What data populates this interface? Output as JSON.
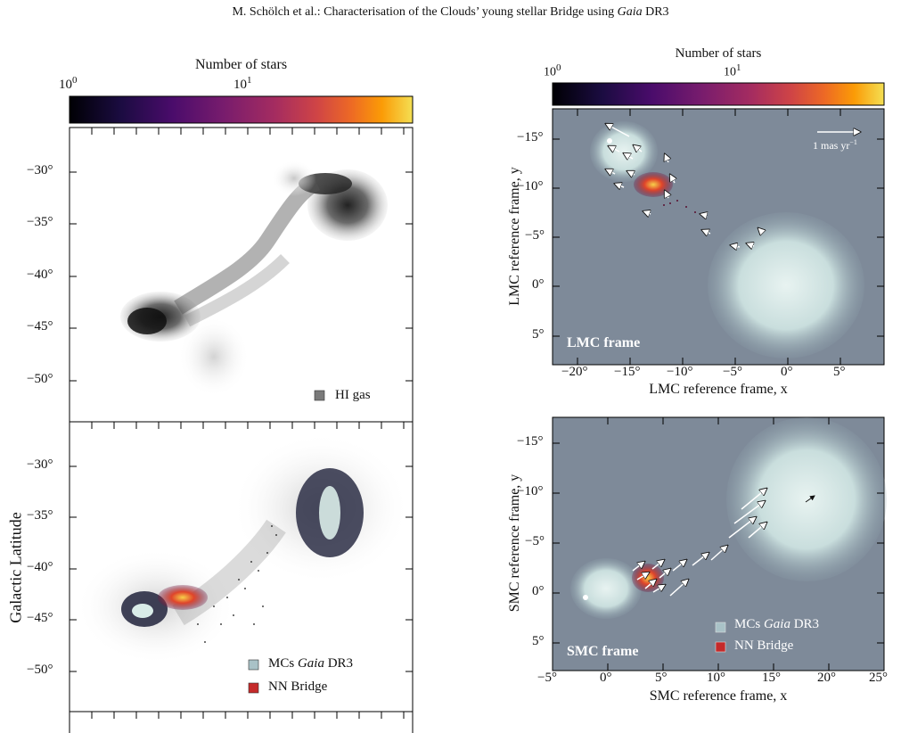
{
  "header": {
    "text": "M. Schölch et al.: Characterisation of the Clouds’ young stellar Bridge  using ",
    "italic": "Gaia",
    "tail": " DR3"
  },
  "left_colorbar": {
    "label": "Number of stars",
    "tick_min": "10",
    "tick_min_exp": "0",
    "tick_mid": "10",
    "tick_mid_exp": "1"
  },
  "right_colorbar": {
    "label": "Number of stars",
    "tick_min": "10",
    "tick_min_exp": "0",
    "tick_mid": "10",
    "tick_mid_exp": "1"
  },
  "left_top": {
    "yticks": [
      "−30°",
      "−35°",
      "−40°",
      "−45°",
      "−50°"
    ],
    "legend": "HI gas",
    "legend_color": "#7a7a7a"
  },
  "left_bottom": {
    "yticks": [
      "−30°",
      "−35°",
      "−40°",
      "−45°",
      "−50°"
    ],
    "ylabel": "Galactic Latitude",
    "legend1": "MCs ",
    "legend1_italic": "Gaia",
    "legend1_tail": " DR3",
    "legend1_color": "#a9c2c7",
    "legend2": "NN Bridge",
    "legend2_color": "#c52a2a"
  },
  "right_top": {
    "yticks": [
      "−15°",
      "−10°",
      "−5°",
      "0°",
      "5°"
    ],
    "xticks": [
      "−20°",
      "−15°",
      "−10°",
      "−5°",
      "0°",
      "5°"
    ],
    "ylabel": "LMC reference frame, y",
    "xlabel": "LMC reference frame, x",
    "frame_label": "LMC frame",
    "arrow_label": "1 mas yr",
    "arrow_label_exp": "−1"
  },
  "right_bottom": {
    "yticks": [
      "−15°",
      "−10°",
      "−5°",
      "0°",
      "5°"
    ],
    "xticks": [
      "−5°",
      "0°",
      "5°",
      "10°",
      "15°",
      "20°",
      "25°"
    ],
    "ylabel": "SMC reference frame, y",
    "xlabel": "SMC reference frame, x",
    "frame_label": "SMC frame",
    "legend1": "MCs ",
    "legend1_italic": "Gaia",
    "legend1_tail": " DR3",
    "legend2": "NN Bridge"
  },
  "colors": {
    "bg_panel": "#7e8a99",
    "cloud": "#dcebea",
    "bridge": "#c62828"
  }
}
